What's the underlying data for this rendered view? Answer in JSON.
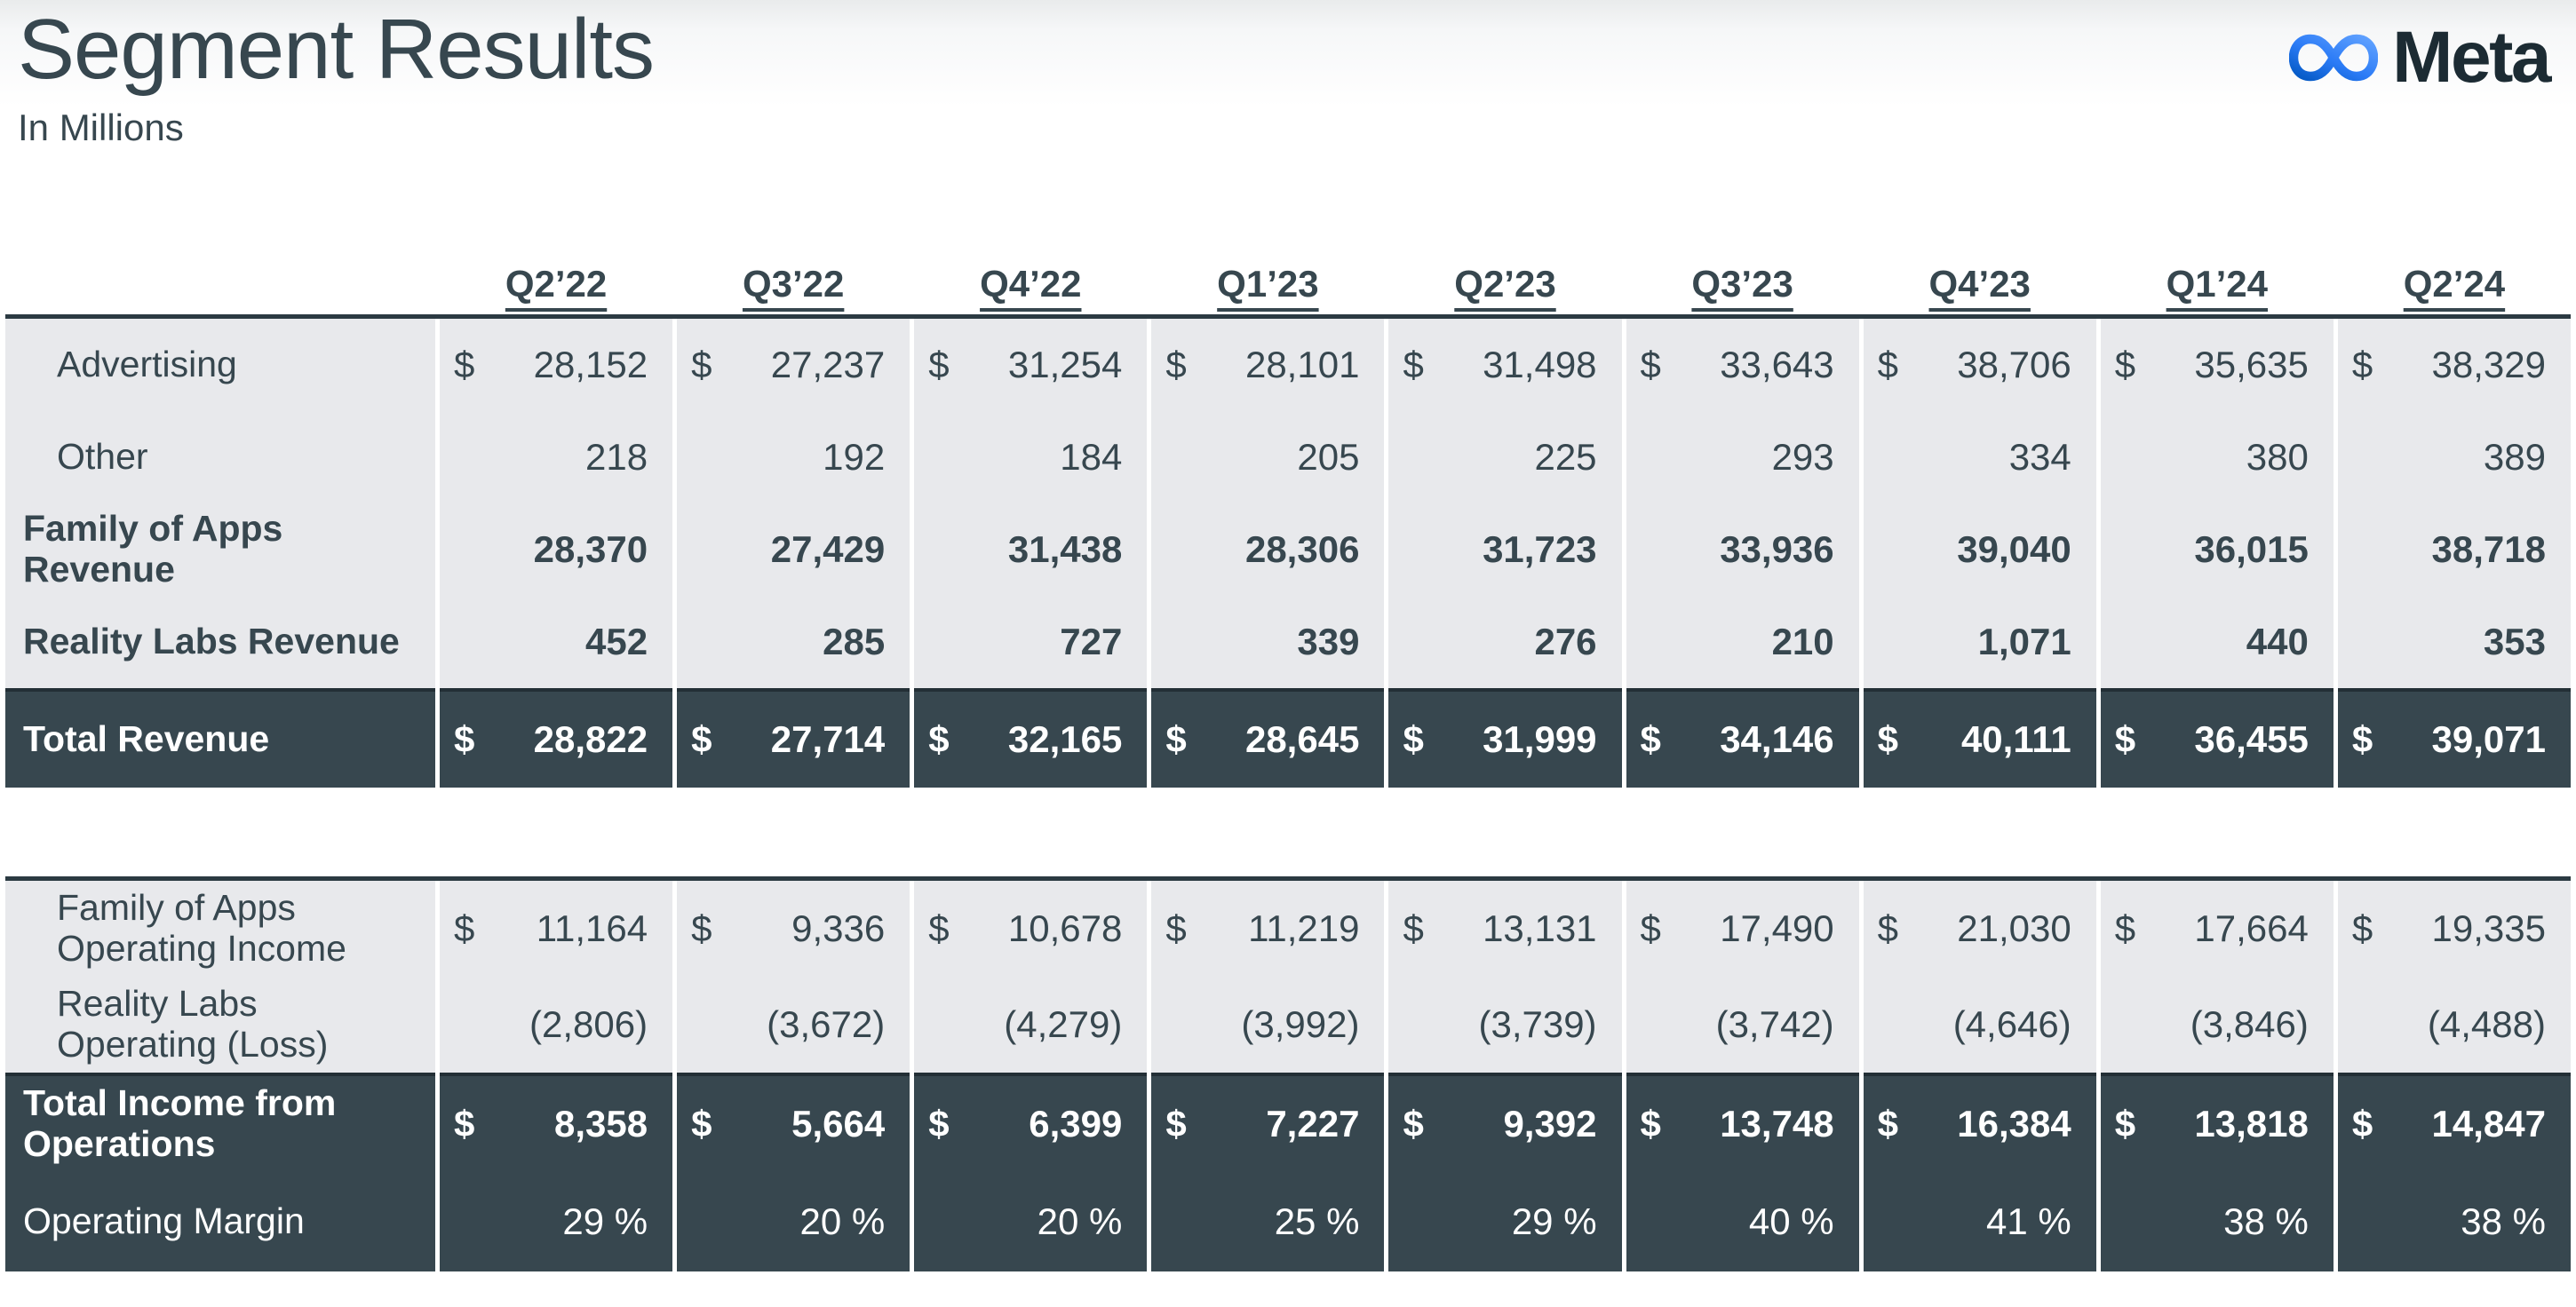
{
  "header": {
    "title": "Segment Results",
    "subtitle": "In Millions",
    "brand": "Meta"
  },
  "colors": {
    "dark_row_background": "#37474F",
    "light_row_background": "#E8E9EC",
    "text": "#37474F",
    "table_border": "#2B3A42",
    "logo_gradient_start": "#0459C4",
    "logo_gradient_end": "#61A2FF",
    "wordmark": "#1C2B33"
  },
  "columns": [
    "Q2’22",
    "Q3’22",
    "Q4’22",
    "Q1’23",
    "Q2’23",
    "Q3’23",
    "Q4’23",
    "Q1’24",
    "Q2’24"
  ],
  "revenue_table": {
    "rows": [
      {
        "label": "Advertising",
        "css": "row grid-cols indent",
        "cells": [
          {
            "c": "$",
            "v": "28,152"
          },
          {
            "c": "$",
            "v": "27,237"
          },
          {
            "c": "$",
            "v": "31,254"
          },
          {
            "c": "$",
            "v": "28,101"
          },
          {
            "c": "$",
            "v": "31,498"
          },
          {
            "c": "$",
            "v": "33,643"
          },
          {
            "c": "$",
            "v": "38,706"
          },
          {
            "c": "$",
            "v": "35,635"
          },
          {
            "c": "$",
            "v": "38,329"
          }
        ]
      },
      {
        "label": "Other",
        "css": "row grid-cols indent",
        "cells": [
          {
            "c": "",
            "v": "218"
          },
          {
            "c": "",
            "v": "192"
          },
          {
            "c": "",
            "v": "184"
          },
          {
            "c": "",
            "v": "205"
          },
          {
            "c": "",
            "v": "225"
          },
          {
            "c": "",
            "v": "293"
          },
          {
            "c": "",
            "v": "334"
          },
          {
            "c": "",
            "v": "380"
          },
          {
            "c": "",
            "v": "389"
          }
        ]
      },
      {
        "label": "Family of Apps\nRevenue",
        "css": "row grid-cols bold",
        "cells": [
          {
            "c": "",
            "v": "28,370"
          },
          {
            "c": "",
            "v": "27,429"
          },
          {
            "c": "",
            "v": "31,438"
          },
          {
            "c": "",
            "v": "28,306"
          },
          {
            "c": "",
            "v": "31,723"
          },
          {
            "c": "",
            "v": "33,936"
          },
          {
            "c": "",
            "v": "39,040"
          },
          {
            "c": "",
            "v": "36,015"
          },
          {
            "c": "",
            "v": "38,718"
          }
        ]
      },
      {
        "label": "Reality Labs Revenue",
        "css": "row grid-cols bold tight",
        "cells": [
          {
            "c": "",
            "v": "452"
          },
          {
            "c": "",
            "v": "285"
          },
          {
            "c": "",
            "v": "727"
          },
          {
            "c": "",
            "v": "339"
          },
          {
            "c": "",
            "v": "276"
          },
          {
            "c": "",
            "v": "210"
          },
          {
            "c": "",
            "v": "1,071"
          },
          {
            "c": "",
            "v": "440"
          },
          {
            "c": "",
            "v": "353"
          }
        ]
      },
      {
        "label": "Total Revenue",
        "css": "row grid-cols dark bold topline",
        "cells": [
          {
            "c": "$",
            "v": "28,822"
          },
          {
            "c": "$",
            "v": "27,714"
          },
          {
            "c": "$",
            "v": "32,165"
          },
          {
            "c": "$",
            "v": "28,645"
          },
          {
            "c": "$",
            "v": "31,999"
          },
          {
            "c": "$",
            "v": "34,146"
          },
          {
            "c": "$",
            "v": "40,111"
          },
          {
            "c": "$",
            "v": "36,455"
          },
          {
            "c": "$",
            "v": "39,071"
          }
        ]
      }
    ]
  },
  "operating_table": {
    "rows": [
      {
        "label": "Family of Apps\nOperating Income",
        "css": "row grid-cols indent",
        "cells": [
          {
            "c": "$",
            "v": "11,164"
          },
          {
            "c": "$",
            "v": "9,336"
          },
          {
            "c": "$",
            "v": "10,678"
          },
          {
            "c": "$",
            "v": "11,219"
          },
          {
            "c": "$",
            "v": "13,131"
          },
          {
            "c": "$",
            "v": "17,490"
          },
          {
            "c": "$",
            "v": "21,030"
          },
          {
            "c": "$",
            "v": "17,664"
          },
          {
            "c": "$",
            "v": "19,335"
          }
        ]
      },
      {
        "label": "Reality Labs\nOperating (Loss)",
        "css": "row grid-cols indent tight",
        "cells": [
          {
            "c": "",
            "v": "(2,806)"
          },
          {
            "c": "",
            "v": "(3,672)"
          },
          {
            "c": "",
            "v": "(4,279)"
          },
          {
            "c": "",
            "v": "(3,992)"
          },
          {
            "c": "",
            "v": "(3,739)"
          },
          {
            "c": "",
            "v": "(3,742)"
          },
          {
            "c": "",
            "v": "(4,646)"
          },
          {
            "c": "",
            "v": "(3,846)"
          },
          {
            "c": "",
            "v": "(4,488)"
          }
        ]
      },
      {
        "label": "Total Income from\nOperations",
        "css": "row grid-cols dark bold topline",
        "cells": [
          {
            "c": "$",
            "v": "8,358"
          },
          {
            "c": "$",
            "v": "5,664"
          },
          {
            "c": "$",
            "v": "6,399"
          },
          {
            "c": "$",
            "v": "7,227"
          },
          {
            "c": "$",
            "v": "9,392"
          },
          {
            "c": "$",
            "v": "13,748"
          },
          {
            "c": "$",
            "v": "16,384"
          },
          {
            "c": "$",
            "v": "13,818"
          },
          {
            "c": "$",
            "v": "14,847"
          }
        ]
      },
      {
        "label": "Operating Margin",
        "css": "row grid-cols dark",
        "cells": [
          {
            "c": "",
            "v": "29 %"
          },
          {
            "c": "",
            "v": "20 %"
          },
          {
            "c": "",
            "v": "20 %"
          },
          {
            "c": "",
            "v": "25 %"
          },
          {
            "c": "",
            "v": "29 %"
          },
          {
            "c": "",
            "v": "40 %"
          },
          {
            "c": "",
            "v": "41 %"
          },
          {
            "c": "",
            "v": "38 %"
          },
          {
            "c": "",
            "v": "38 %"
          }
        ]
      }
    ]
  }
}
